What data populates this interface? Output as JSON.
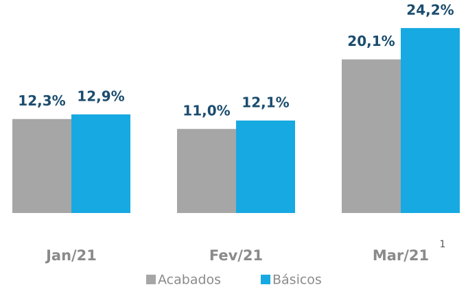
{
  "chart_data": {
    "type": "bar",
    "categories": [
      "Jan/21",
      "Fev/21",
      "Mar/21"
    ],
    "series": [
      {
        "name": "Acabados",
        "color": "#a6a6a6",
        "values": [
          12.3,
          11.0,
          20.1
        ],
        "value_labels": [
          "12,3%",
          "11,0%",
          "20,1%"
        ]
      },
      {
        "name": "Básicos",
        "color": "#17a9e1",
        "values": [
          12.9,
          12.1,
          24.2
        ],
        "value_labels": [
          "12,9%",
          "12,1%",
          "24,2%"
        ]
      }
    ],
    "annotation": "1"
  }
}
